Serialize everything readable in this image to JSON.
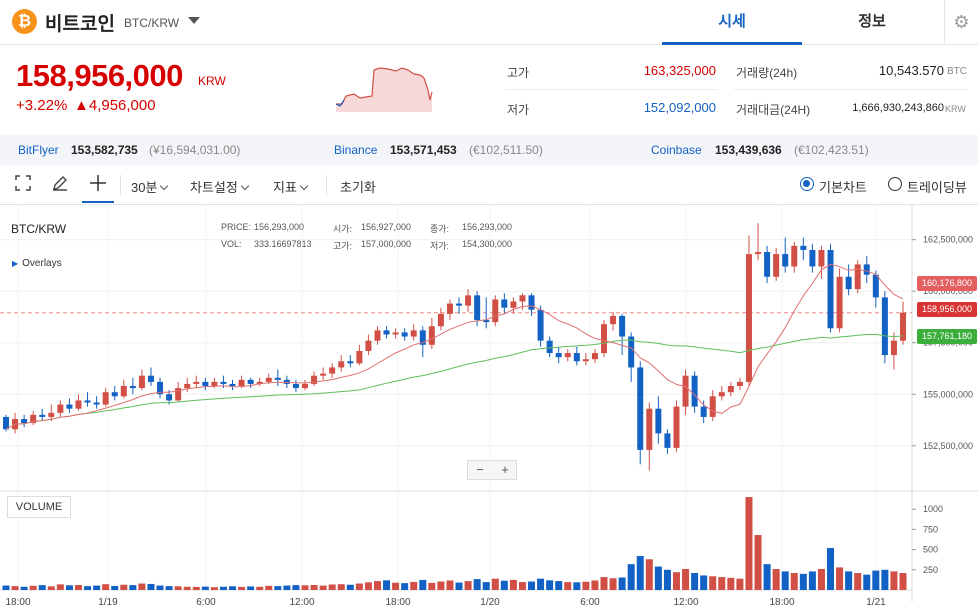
{
  "header": {
    "coin_symbol": "₿",
    "coin_name": "비트코인",
    "pair": "BTC/KRW",
    "tabs": [
      "시세",
      "정보"
    ],
    "settings_icon": "gear-icon"
  },
  "summary": {
    "price": "158,956,000",
    "unit": "KRW",
    "change_rate": "+3.22%",
    "change_amount": "▲4,956,000",
    "high_label": "고가",
    "high_value": "163,325,000",
    "low_label": "저가",
    "low_value": "152,092,000",
    "volume_label": "거래량(24h)",
    "volume_value": "10,543.570",
    "volume_unit": "BTC",
    "amount_label": "거래대금(24H)",
    "amount_value": "1,666,930,243,860",
    "amount_unit": "KRW"
  },
  "exchanges": [
    {
      "name": "BitFlyer",
      "price": "153,582,735",
      "sub": "(¥16,594,031.00)"
    },
    {
      "name": "Binance",
      "price": "153,571,453",
      "sub": "(€102,511.50)"
    },
    {
      "name": "Coinbase",
      "price": "153,439,636",
      "sub": "(€102,423.51)"
    }
  ],
  "toolbar": {
    "interval": "30분",
    "chart_settings": "차트설정",
    "indicators": "지표",
    "reset": "초기화",
    "view_basic": "기본차트",
    "view_tradingview": "트레이딩뷰"
  },
  "chart_info": {
    "pair": "BTC/KRW",
    "overlays": "Overlays",
    "price_label": "PRICE:",
    "price_value": "156,293,000",
    "open_label": "시가:",
    "open_value": "156,927,000",
    "close_label": "종가:",
    "close_value": "156,293,000",
    "vol_label": "VOL:",
    "vol_value": "333.16697813",
    "high_label": "고가:",
    "high_value": "157,000,000",
    "low_label": "저가:",
    "low_value": "154,300,000",
    "volume_title": "VOLUME",
    "zoom_out": "−",
    "zoom_in": "+",
    "price_tags": [
      "160,176,800",
      "158,956,000",
      "157,761,180"
    ]
  },
  "chart_data": {
    "type": "candlestick",
    "price_axis": [
      "162,500,000",
      "160,000,000",
      "157,500,000",
      "155,000,000",
      "152,500,000"
    ],
    "price_ticks": [
      162500000,
      160000000,
      157500000,
      155000000,
      152500000
    ],
    "volume_axis": [
      "1000",
      "750",
      "500",
      "250"
    ],
    "volume_ticks": [
      1000,
      750,
      500,
      250
    ],
    "x_axis": [
      "18:00",
      "1/19",
      "6:00",
      "12:00",
      "18:00",
      "1/20",
      "6:00",
      "12:00",
      "18:00",
      "1/21"
    ],
    "candles": [
      [
        153900000,
        153300000,
        154000000,
        153200000
      ],
      [
        153300000,
        153800000,
        154100000,
        153100000
      ],
      [
        153800000,
        153600000,
        154000000,
        153400000
      ],
      [
        153600000,
        154000000,
        154200000,
        153500000
      ],
      [
        154000000,
        153900000,
        154300000,
        153700000
      ],
      [
        153900000,
        154100000,
        154500000,
        153700000
      ],
      [
        154100000,
        154500000,
        154700000,
        153900000
      ],
      [
        154500000,
        154300000,
        154800000,
        154100000
      ],
      [
        154300000,
        154700000,
        155000000,
        154200000
      ],
      [
        154700000,
        154600000,
        155100000,
        154400000
      ],
      [
        154600000,
        154500000,
        154900000,
        154300000
      ],
      [
        154500000,
        155100000,
        155300000,
        154400000
      ],
      [
        155100000,
        154900000,
        155400000,
        154700000
      ],
      [
        154900000,
        155400000,
        155700000,
        154800000
      ],
      [
        155400000,
        155300000,
        155800000,
        155000000
      ],
      [
        155300000,
        155900000,
        156200000,
        155200000
      ],
      [
        155900000,
        155600000,
        156300000,
        155400000
      ],
      [
        155600000,
        155000000,
        155800000,
        154800000
      ],
      [
        155000000,
        154700000,
        155200000,
        154500000
      ],
      [
        154700000,
        155300000,
        155600000,
        154600000
      ],
      [
        155300000,
        155500000,
        155800000,
        155100000
      ],
      [
        155500000,
        155600000,
        155900000,
        155300000
      ],
      [
        155600000,
        155400000,
        155800000,
        155200000
      ],
      [
        155400000,
        155600000,
        155800000,
        155300000
      ],
      [
        155600000,
        155500000,
        155900000,
        155300000
      ],
      [
        155500000,
        155400000,
        155700000,
        155200000
      ],
      [
        155400000,
        155700000,
        155900000,
        155300000
      ],
      [
        155700000,
        155500000,
        155800000,
        155300000
      ],
      [
        155500000,
        155600000,
        155800000,
        155400000
      ],
      [
        155600000,
        155800000,
        156000000,
        155500000
      ],
      [
        155800000,
        155700000,
        156200000,
        155400000
      ],
      [
        155700000,
        155500000,
        155900000,
        155300000
      ],
      [
        155500000,
        155300000,
        155700000,
        155100000
      ],
      [
        155300000,
        155500000,
        155700000,
        155200000
      ],
      [
        155500000,
        155900000,
        156100000,
        155400000
      ],
      [
        155900000,
        156000000,
        156300000,
        155700000
      ],
      [
        156000000,
        156300000,
        156500000,
        155800000
      ],
      [
        156300000,
        156600000,
        156900000,
        156100000
      ],
      [
        156600000,
        156500000,
        156900000,
        156300000
      ],
      [
        156500000,
        157100000,
        157400000,
        156400000
      ],
      [
        157100000,
        157600000,
        157900000,
        156900000
      ],
      [
        157600000,
        158100000,
        158300000,
        157400000
      ],
      [
        158100000,
        157900000,
        158300000,
        157700000
      ],
      [
        157900000,
        158000000,
        158200000,
        157700000
      ],
      [
        158000000,
        157800000,
        158200000,
        157600000
      ],
      [
        157800000,
        158100000,
        158400000,
        157600000
      ],
      [
        158100000,
        157400000,
        158300000,
        156800000
      ],
      [
        157400000,
        158300000,
        158700000,
        157200000
      ],
      [
        158300000,
        158900000,
        159200000,
        158100000
      ],
      [
        158900000,
        159400000,
        159600000,
        158600000
      ],
      [
        159400000,
        159300000,
        159700000,
        158900000
      ],
      [
        159300000,
        159800000,
        160100000,
        159000000
      ],
      [
        159800000,
        158600000,
        160000000,
        158300000
      ],
      [
        158600000,
        158500000,
        159700000,
        158200000
      ],
      [
        158500000,
        159600000,
        159800000,
        158300000
      ],
      [
        159600000,
        159200000,
        159900000,
        158900000
      ],
      [
        159200000,
        159500000,
        159700000,
        158900000
      ],
      [
        159500000,
        159800000,
        159900000,
        159100000
      ],
      [
        159800000,
        159100000,
        159900000,
        158800000
      ],
      [
        159100000,
        157600000,
        159300000,
        157300000
      ],
      [
        157600000,
        157000000,
        157800000,
        156800000
      ],
      [
        157000000,
        156800000,
        157300000,
        156500000
      ],
      [
        156800000,
        157000000,
        157200000,
        156600000
      ],
      [
        157000000,
        156600000,
        157300000,
        156400000
      ],
      [
        156600000,
        156700000,
        157000000,
        156400000
      ],
      [
        156700000,
        157000000,
        157200000,
        156500000
      ],
      [
        157000000,
        158400000,
        158600000,
        156800000
      ],
      [
        158400000,
        158800000,
        159000000,
        158100000
      ],
      [
        158800000,
        157800000,
        158900000,
        156900000
      ],
      [
        157800000,
        156300000,
        158000000,
        155600000
      ],
      [
        156300000,
        152300000,
        156600000,
        151600000
      ],
      [
        152300000,
        154300000,
        154600000,
        151300000
      ],
      [
        154300000,
        153100000,
        154900000,
        152600000
      ],
      [
        153100000,
        152400000,
        153300000,
        152100000
      ],
      [
        152400000,
        154400000,
        154700000,
        152200000
      ],
      [
        154400000,
        155900000,
        156200000,
        154000000
      ],
      [
        155900000,
        154400000,
        156100000,
        154100000
      ],
      [
        154400000,
        153900000,
        154700000,
        153600000
      ],
      [
        153900000,
        154900000,
        155200000,
        153700000
      ],
      [
        154900000,
        155100000,
        155400000,
        154700000
      ],
      [
        155100000,
        155400000,
        155600000,
        154900000
      ],
      [
        155400000,
        155600000,
        155800000,
        155200000
      ],
      [
        155600000,
        161800000,
        162700000,
        155400000
      ],
      [
        161800000,
        161900000,
        163300000,
        161500000
      ],
      [
        161900000,
        160700000,
        162200000,
        160400000
      ],
      [
        160700000,
        161800000,
        162100000,
        160500000
      ],
      [
        161800000,
        161200000,
        162600000,
        160900000
      ],
      [
        161200000,
        162200000,
        162400000,
        160900000
      ],
      [
        162200000,
        162000000,
        162600000,
        161500000
      ],
      [
        162000000,
        161200000,
        162300000,
        160900000
      ],
      [
        161200000,
        162000000,
        162200000,
        160600000
      ],
      [
        162000000,
        158200000,
        162300000,
        158000000
      ],
      [
        158200000,
        160700000,
        161100000,
        158000000
      ],
      [
        160700000,
        160100000,
        161300000,
        159800000
      ],
      [
        160100000,
        161300000,
        161500000,
        159900000
      ],
      [
        161300000,
        160800000,
        161700000,
        160400000
      ],
      [
        160800000,
        159700000,
        161000000,
        159200000
      ],
      [
        159700000,
        156900000,
        160000000,
        156500000
      ],
      [
        156900000,
        157600000,
        158000000,
        156200000
      ],
      [
        157600000,
        158956000,
        159500000,
        157400000
      ]
    ],
    "volumes": [
      55,
      48,
      40,
      52,
      60,
      45,
      70,
      58,
      62,
      48,
      55,
      72,
      50,
      65,
      60,
      80,
      75,
      55,
      48,
      45,
      40,
      38,
      42,
      35,
      40,
      46,
      38,
      44,
      40,
      52,
      48,
      55,
      60,
      58,
      62,
      55,
      68,
      72,
      65,
      80,
      95,
      110,
      120,
      90,
      85,
      100,
      125,
      88,
      105,
      118,
      92,
      110,
      135,
      98,
      140,
      115,
      125,
      98,
      105,
      140,
      120,
      110,
      98,
      95,
      102,
      118,
      160,
      145,
      155,
      320,
      420,
      380,
      290,
      250,
      220,
      260,
      210,
      180,
      170,
      160,
      150,
      140,
      1150,
      680,
      320,
      260,
      230,
      210,
      200,
      230,
      260,
      520,
      280,
      230,
      210,
      190,
      240,
      250,
      230,
      210
    ],
    "colors": {
      "up": "#d24f45",
      "down": "#1261c4",
      "ma_fast": "#e07070",
      "ma_slow": "#5fbf5f"
    }
  }
}
